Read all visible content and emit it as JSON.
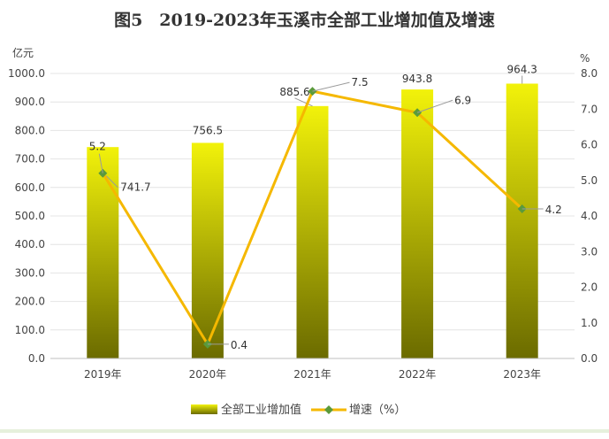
{
  "colors": {
    "bar_top": "#f2f20a",
    "bar_bottom": "#6b6b00",
    "line": "#f5b800",
    "marker": "#5a9a3c",
    "grid": "#e4e4e4",
    "text": "#444444"
  },
  "chart_data": {
    "type": "bar",
    "title": "图5　2019-2023年玉溪市全部工业增加值及增速",
    "categories": [
      "2019年",
      "2020年",
      "2021年",
      "2022年",
      "2023年"
    ],
    "y_left": {
      "unit": "亿元",
      "range": [
        0,
        1000
      ],
      "ticks": [
        "0.0",
        "100.0",
        "200.0",
        "300.0",
        "400.0",
        "500.0",
        "600.0",
        "700.0",
        "800.0",
        "900.0",
        "1000.0"
      ]
    },
    "y_right": {
      "unit": "%",
      "range": [
        0,
        8
      ],
      "ticks": [
        "0.0",
        "1.0",
        "2.0",
        "3.0",
        "4.0",
        "5.0",
        "6.0",
        "7.0",
        "8.0"
      ]
    },
    "series": [
      {
        "name": "全部工业增加值",
        "type": "bar",
        "axis": "left",
        "values": [
          741.7,
          756.5,
          885.6,
          943.8,
          964.3
        ],
        "labels": [
          "741.7",
          "756.5",
          "885.6",
          "943.8",
          "964.3"
        ]
      },
      {
        "name": "增速（%）",
        "type": "line",
        "axis": "right",
        "values": [
          5.2,
          0.4,
          7.5,
          6.9,
          4.2
        ],
        "labels": [
          "5.2",
          "0.4",
          "7.5",
          "6.9",
          "4.2"
        ]
      }
    ],
    "grid": true,
    "legend": "bottom"
  }
}
